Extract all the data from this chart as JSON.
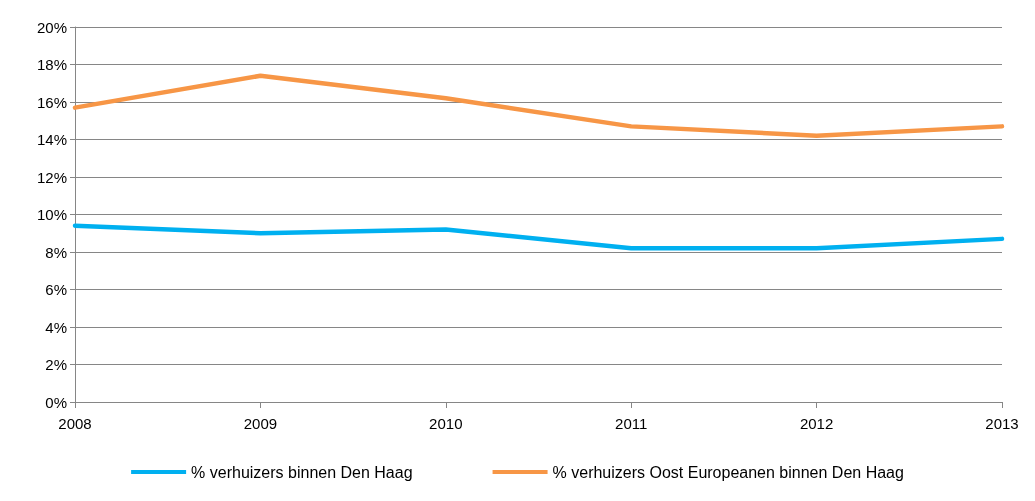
{
  "chart_data": {
    "type": "line",
    "categories": [
      "2008",
      "2009",
      "2010",
      "2011",
      "2012",
      "2013"
    ],
    "series": [
      {
        "name": "% verhuizers binnen Den Haag",
        "color": "#00b0f0",
        "values": [
          9.4,
          9.0,
          9.2,
          8.2,
          8.2,
          8.7
        ]
      },
      {
        "name": "% verhuizers Oost Europeanen binnen Den Haag",
        "color": "#f79646",
        "values": [
          15.7,
          17.4,
          16.2,
          14.7,
          14.2,
          14.7
        ]
      }
    ],
    "ylim": [
      0,
      20
    ],
    "yticks": [
      {
        "value": 0,
        "label": "0%"
      },
      {
        "value": 2,
        "label": "2%"
      },
      {
        "value": 4,
        "label": "4%"
      },
      {
        "value": 6,
        "label": "6%"
      },
      {
        "value": 8,
        "label": "8%"
      },
      {
        "value": 10,
        "label": "10%"
      },
      {
        "value": 12,
        "label": "12%"
      },
      {
        "value": 14,
        "label": "14%"
      },
      {
        "value": 16,
        "label": "16%"
      },
      {
        "value": 18,
        "label": "18%"
      },
      {
        "value": 20,
        "label": "20%"
      }
    ],
    "grid": "y",
    "legend": "bottom",
    "marker": "none",
    "line_style": "solid"
  }
}
